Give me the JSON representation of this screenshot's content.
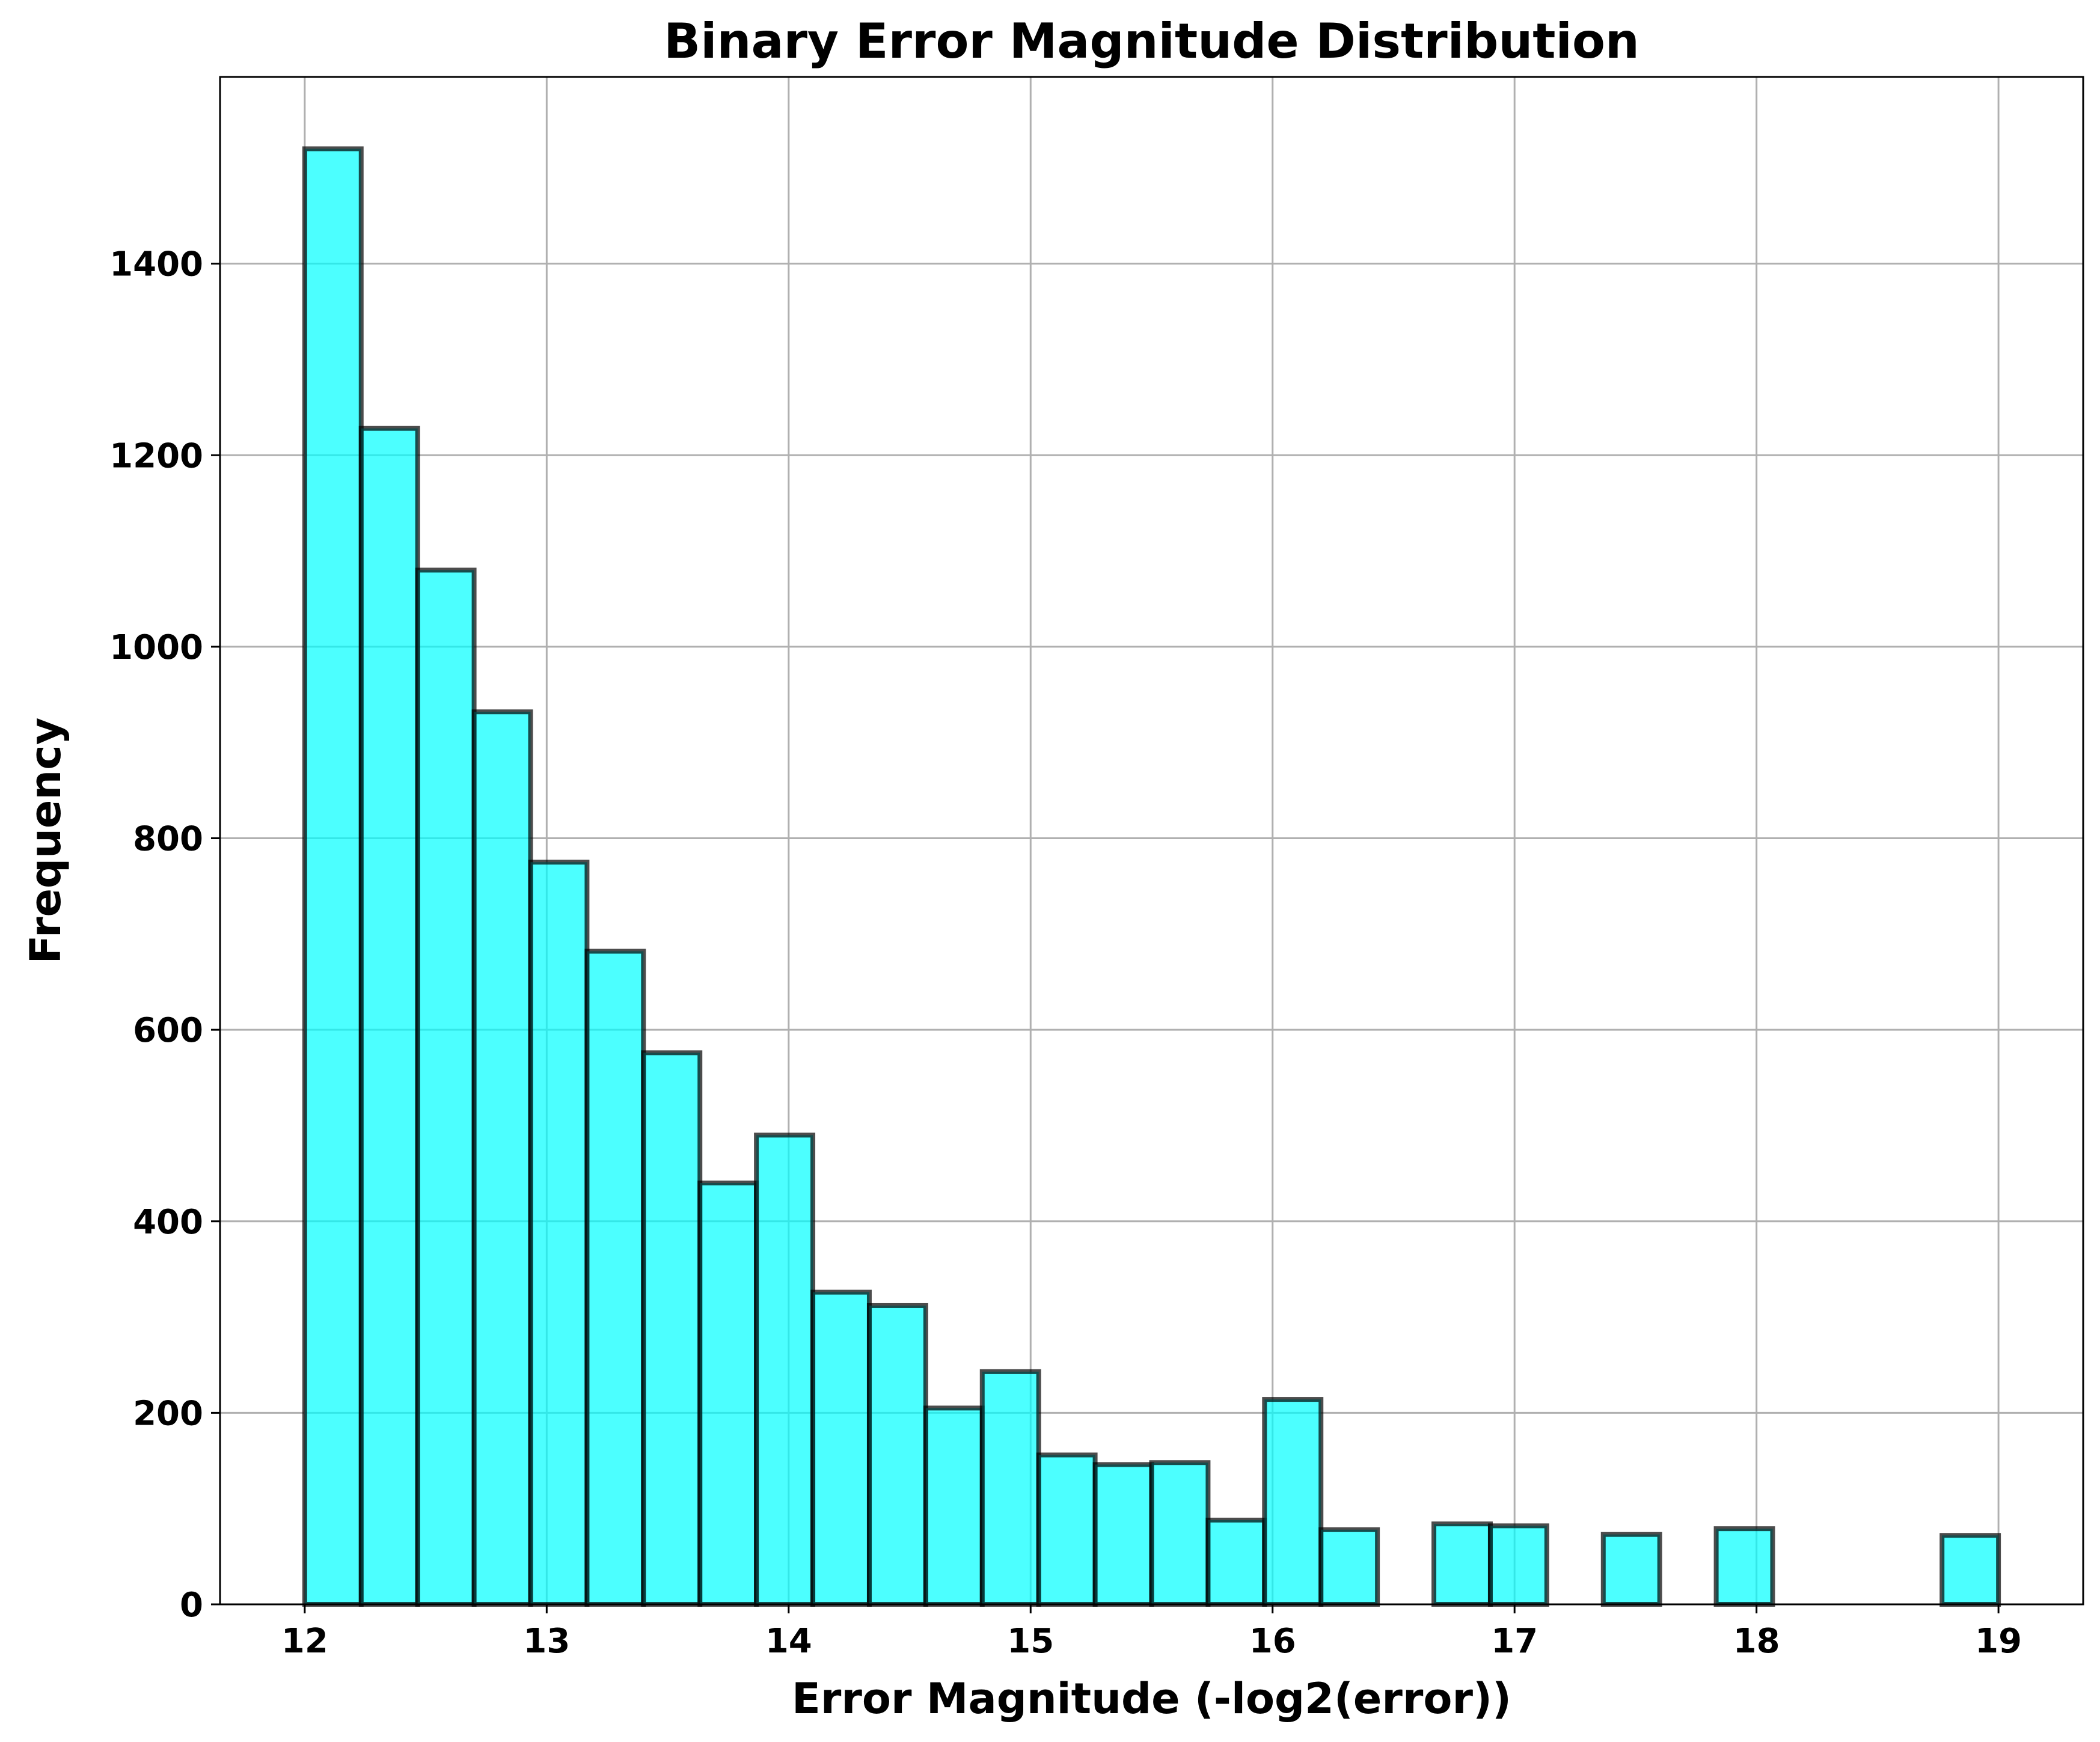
{
  "chart_data": {
    "type": "bar",
    "title": "Binary Error Magnitude Distribution",
    "xlabel": "Error Magnitude (-log2(error))",
    "ylabel": "Frequency",
    "xlim": [
      11.65,
      19.35
    ],
    "ylim": [
      0,
      1595
    ],
    "xticks": [
      12,
      13,
      14,
      15,
      16,
      17,
      18,
      19
    ],
    "yticks": [
      0,
      200,
      400,
      600,
      800,
      1000,
      1200,
      1400
    ],
    "grid": true,
    "bin_range": [
      12,
      19
    ],
    "bar_color": "#00ffff",
    "edge_color": "#000000",
    "bins": 30,
    "values": [
      1520,
      1228,
      1080,
      932,
      775,
      682,
      576,
      440,
      490,
      326,
      312,
      205,
      243,
      156,
      146,
      148,
      88,
      214,
      78,
      0,
      84,
      82,
      0,
      73,
      0,
      79,
      0,
      0,
      0,
      72
    ]
  }
}
